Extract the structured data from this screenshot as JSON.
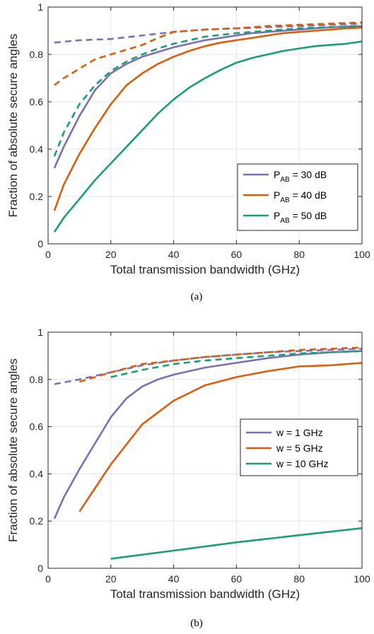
{
  "charts": [
    {
      "caption": "(a)",
      "xlabel": "Total transmission bandwidth (GHz)",
      "ylabel": "Fraction of absolute secure angles",
      "xlim": [
        0,
        100
      ],
      "ylim": [
        0,
        1
      ],
      "xticks": [
        0,
        20,
        40,
        60,
        80,
        100
      ],
      "yticks": [
        0,
        0.2,
        0.4,
        0.6,
        0.8,
        1
      ],
      "ytick_labels": [
        "0",
        "0.2",
        "0.4",
        "0.6",
        "0.8",
        "1"
      ],
      "legend": [
        {
          "main": "P",
          "sub": "AB",
          "rest": " = 30 dB",
          "color": "#7E6FB3"
        },
        {
          "main": "P",
          "sub": "AB",
          "rest": " = 40 dB",
          "color": "#D95F0E"
        },
        {
          "main": "P",
          "sub": "AB",
          "rest": " = 50 dB",
          "color": "#1B9E77"
        }
      ]
    },
    {
      "caption": "(b)",
      "xlabel": "Total transmission bandwidth (GHz)",
      "ylabel": "Fraction of absolute secure angles",
      "xlim": [
        0,
        100
      ],
      "ylim": [
        0,
        1
      ],
      "xticks": [
        0,
        20,
        40,
        60,
        80,
        100
      ],
      "yticks": [
        0,
        0.2,
        0.4,
        0.6,
        0.8,
        1
      ],
      "ytick_labels": [
        "0",
        "0.2",
        "0.4",
        "0.6",
        "0.8",
        "1"
      ],
      "legend": [
        {
          "main": "w = 1 GHz",
          "sub": "",
          "rest": "",
          "color": "#7E6FB3"
        },
        {
          "main": "w = 5 GHz",
          "sub": "",
          "rest": "",
          "color": "#D95F0E"
        },
        {
          "main": "w = 10 GHz",
          "sub": "",
          "rest": "",
          "color": "#1B9E77"
        }
      ]
    }
  ],
  "chart_data": [
    {
      "type": "line",
      "grid": true,
      "legend_position": "bottom-right",
      "series": [
        {
          "legend_index": 0,
          "color": "#7E6FB3",
          "style": "solid",
          "x": [
            2,
            5,
            10,
            15,
            20,
            25,
            30,
            35,
            40,
            45,
            50,
            55,
            60,
            65,
            70,
            75,
            80,
            85,
            90,
            95,
            100
          ],
          "y": [
            0.32,
            0.41,
            0.54,
            0.65,
            0.72,
            0.76,
            0.79,
            0.81,
            0.83,
            0.845,
            0.86,
            0.87,
            0.88,
            0.89,
            0.895,
            0.9,
            0.905,
            0.91,
            0.915,
            0.918,
            0.92
          ]
        },
        {
          "legend_index": 1,
          "color": "#D95F0E",
          "style": "solid",
          "x": [
            2,
            5,
            10,
            15,
            20,
            25,
            30,
            35,
            40,
            45,
            50,
            55,
            60,
            65,
            70,
            75,
            80,
            85,
            90,
            95,
            100
          ],
          "y": [
            0.14,
            0.25,
            0.38,
            0.49,
            0.59,
            0.67,
            0.72,
            0.76,
            0.79,
            0.815,
            0.835,
            0.85,
            0.86,
            0.87,
            0.88,
            0.89,
            0.895,
            0.9,
            0.905,
            0.91,
            0.913
          ]
        },
        {
          "legend_index": 2,
          "color": "#1B9E77",
          "style": "solid",
          "x": [
            2,
            5,
            10,
            15,
            20,
            25,
            30,
            35,
            40,
            45,
            50,
            55,
            60,
            65,
            70,
            75,
            80,
            85,
            90,
            95,
            100
          ],
          "y": [
            0.05,
            0.11,
            0.19,
            0.27,
            0.34,
            0.41,
            0.48,
            0.55,
            0.61,
            0.66,
            0.7,
            0.735,
            0.765,
            0.785,
            0.8,
            0.815,
            0.825,
            0.835,
            0.84,
            0.845,
            0.855
          ]
        },
        {
          "color": "#7E6FB3",
          "style": "dashed",
          "x": [
            2,
            10,
            20,
            30,
            40,
            50,
            60,
            70,
            80,
            90,
            100
          ],
          "y": [
            0.85,
            0.86,
            0.865,
            0.88,
            0.895,
            0.905,
            0.91,
            0.915,
            0.92,
            0.925,
            0.93
          ]
        },
        {
          "color": "#D95F0E",
          "style": "dashed",
          "x": [
            2,
            5,
            10,
            15,
            20,
            25,
            30,
            35,
            40,
            50,
            60,
            70,
            80,
            90,
            100
          ],
          "y": [
            0.67,
            0.7,
            0.74,
            0.78,
            0.8,
            0.82,
            0.84,
            0.87,
            0.895,
            0.905,
            0.91,
            0.92,
            0.925,
            0.93,
            0.935
          ]
        },
        {
          "color": "#1B9E77",
          "style": "dashed",
          "x": [
            2,
            5,
            10,
            15,
            20,
            25,
            30,
            35,
            40,
            45,
            50,
            60,
            70,
            80,
            90,
            100
          ],
          "y": [
            0.37,
            0.47,
            0.59,
            0.67,
            0.73,
            0.77,
            0.8,
            0.825,
            0.845,
            0.86,
            0.875,
            0.89,
            0.9,
            0.91,
            0.915,
            0.92
          ]
        }
      ]
    },
    {
      "type": "line",
      "grid": true,
      "legend_position": "center-right",
      "series": [
        {
          "legend_index": 0,
          "color": "#7E6FB3",
          "style": "solid",
          "x": [
            2,
            5,
            10,
            15,
            20,
            25,
            30,
            35,
            40,
            50,
            60,
            70,
            80,
            90,
            100
          ],
          "y": [
            0.21,
            0.3,
            0.42,
            0.53,
            0.64,
            0.72,
            0.77,
            0.8,
            0.82,
            0.85,
            0.87,
            0.89,
            0.905,
            0.915,
            0.92
          ]
        },
        {
          "legend_index": 1,
          "color": "#D95F0E",
          "style": "solid",
          "x": [
            10,
            20,
            30,
            40,
            50,
            60,
            70,
            80,
            90,
            100
          ],
          "y": [
            0.24,
            0.44,
            0.61,
            0.71,
            0.775,
            0.81,
            0.835,
            0.855,
            0.86,
            0.87
          ]
        },
        {
          "legend_index": 2,
          "color": "#1B9E77",
          "style": "solid",
          "x": [
            20,
            40,
            60,
            80,
            100
          ],
          "y": [
            0.04,
            0.075,
            0.11,
            0.14,
            0.17
          ]
        },
        {
          "color": "#7E6FB3",
          "style": "dashed",
          "x": [
            2,
            10,
            20,
            30,
            40,
            50,
            60,
            70,
            80,
            90,
            100
          ],
          "y": [
            0.78,
            0.8,
            0.83,
            0.86,
            0.88,
            0.895,
            0.905,
            0.915,
            0.92,
            0.925,
            0.93
          ]
        },
        {
          "color": "#D95F0E",
          "style": "dashed",
          "x": [
            10,
            20,
            30,
            40,
            50,
            60,
            70,
            80,
            90,
            100
          ],
          "y": [
            0.79,
            0.83,
            0.865,
            0.88,
            0.895,
            0.905,
            0.915,
            0.925,
            0.93,
            0.935
          ]
        },
        {
          "color": "#1B9E77",
          "style": "dashed",
          "x": [
            20,
            30,
            40,
            50,
            60,
            70,
            80,
            90,
            100
          ],
          "y": [
            0.81,
            0.84,
            0.865,
            0.88,
            0.89,
            0.9,
            0.91,
            0.915,
            0.92
          ]
        }
      ]
    }
  ]
}
